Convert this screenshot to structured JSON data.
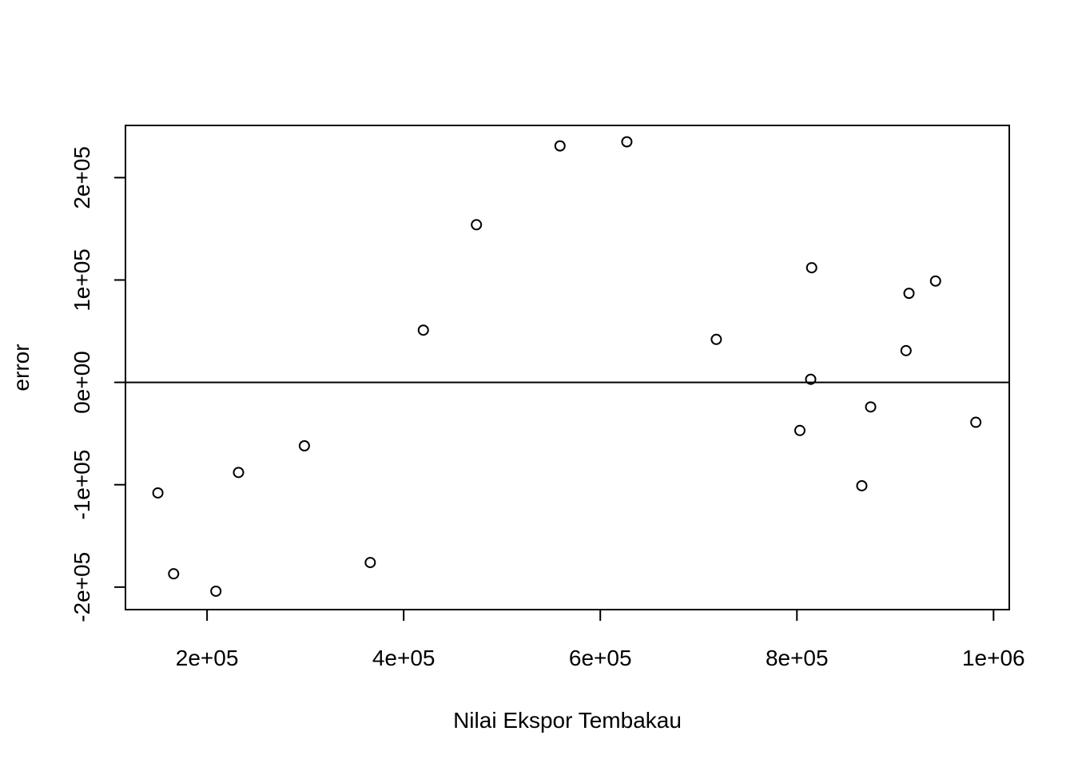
{
  "chart_data": {
    "type": "scatter",
    "title": "",
    "xlabel": "Nilai Ekspor Tembakau",
    "ylabel": "error",
    "xlim": [
      117000,
      1016000
    ],
    "ylim": [
      -222000,
      251000
    ],
    "x_ticks": [
      200000,
      400000,
      600000,
      800000,
      1000000
    ],
    "x_tick_labels": [
      "2e+05",
      "4e+05",
      "6e+05",
      "8e+05",
      "1e+06"
    ],
    "y_ticks": [
      -200000,
      -100000,
      0,
      100000,
      200000
    ],
    "y_tick_labels": [
      "-2e+05",
      "-1e+05",
      "0e+00",
      "1e+05",
      "2e+05"
    ],
    "reference_line": {
      "y": 0
    },
    "grid": false,
    "point_style": "open-circle",
    "color": "#000000",
    "points": [
      {
        "x": 150000,
        "y": -108000
      },
      {
        "x": 166000,
        "y": -187000
      },
      {
        "x": 209000,
        "y": -204000
      },
      {
        "x": 232000,
        "y": -88000
      },
      {
        "x": 299000,
        "y": -62000
      },
      {
        "x": 366000,
        "y": -176000
      },
      {
        "x": 420000,
        "y": 51000
      },
      {
        "x": 474000,
        "y": 154000
      },
      {
        "x": 559000,
        "y": 231000
      },
      {
        "x": 627000,
        "y": 235000
      },
      {
        "x": 718000,
        "y": 42000
      },
      {
        "x": 803000,
        "y": -47000
      },
      {
        "x": 815000,
        "y": 112000
      },
      {
        "x": 814000,
        "y": 3000
      },
      {
        "x": 866000,
        "y": -101000
      },
      {
        "x": 875000,
        "y": -24000
      },
      {
        "x": 911000,
        "y": 31000
      },
      {
        "x": 914000,
        "y": 87000
      },
      {
        "x": 941000,
        "y": 99000
      },
      {
        "x": 982000,
        "y": -39000
      }
    ]
  }
}
